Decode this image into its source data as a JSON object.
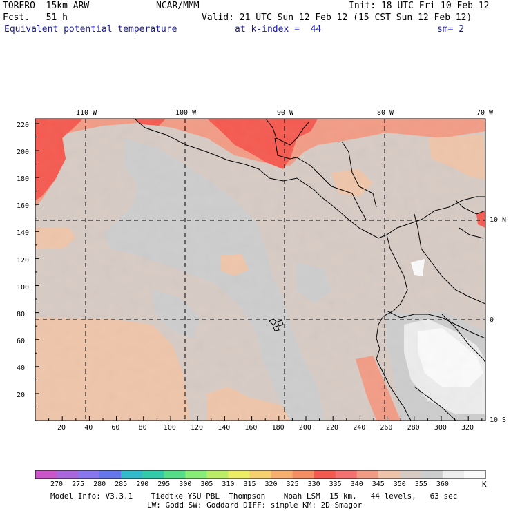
{
  "header": {
    "model": "TORERO  15km ARW",
    "center": "NCAR/MMM",
    "init": "Init: 18 UTC Fri 10 Feb 12",
    "fcst": "Fcst.   51 h",
    "valid": "Valid: 21 UTC Sun 12 Feb 12 (15 CST Sun 12 Feb 12)",
    "field": "Equivalent potential temperature",
    "level": "at k-index =  44",
    "smoothing": "sm= 2"
  },
  "map": {
    "lon_labels": [
      "110 W",
      "100 W",
      "90 W",
      "80 W",
      "70 W"
    ],
    "lat_labels": [
      "10 N",
      "0",
      "10 S"
    ],
    "left_ticks": [
      "220",
      "200",
      "180",
      "160",
      "140",
      "120",
      "100",
      "80",
      "60",
      "40",
      "20"
    ],
    "bottom_ticks": [
      "20",
      "40",
      "60",
      "80",
      "100",
      "120",
      "140",
      "160",
      "180",
      "200",
      "220",
      "240",
      "260",
      "280",
      "300",
      "320"
    ],
    "fill_colors": {
      "very_warm": "#f55a50",
      "warm": "#f29c86",
      "peach": "#eec5aa",
      "tan": "#d7cbc4",
      "grey": "#cdcdcd",
      "light": "#ececec",
      "white": "#fafafa"
    }
  },
  "colorbar": {
    "labels": [
      "270",
      "275",
      "280",
      "285",
      "290",
      "295",
      "300",
      "305",
      "310",
      "315",
      "320",
      "325",
      "330",
      "335",
      "340",
      "345",
      "350",
      "355",
      "360"
    ],
    "unit": "K",
    "colors": [
      "#cc55cc",
      "#aa66dd",
      "#8877ee",
      "#6677ee",
      "#33bbcc",
      "#33ccaa",
      "#55dd88",
      "#88ee77",
      "#bbee66",
      "#eeee66",
      "#f7d070",
      "#f7b070",
      "#f58e62",
      "#f55a50",
      "#f57070",
      "#f29c86",
      "#eec5aa",
      "#d7cbc4",
      "#cdcdcd",
      "#ececec",
      "#fafafa"
    ]
  },
  "footer": {
    "line1": "Model Info: V3.3.1    Tiedtke YSU PBL  Thompson    Noah LSM  15 km,   44 levels,   63 sec",
    "line2": "LW: Godd SW: Goddard DIFF: simple KM: 2D Smagor"
  }
}
